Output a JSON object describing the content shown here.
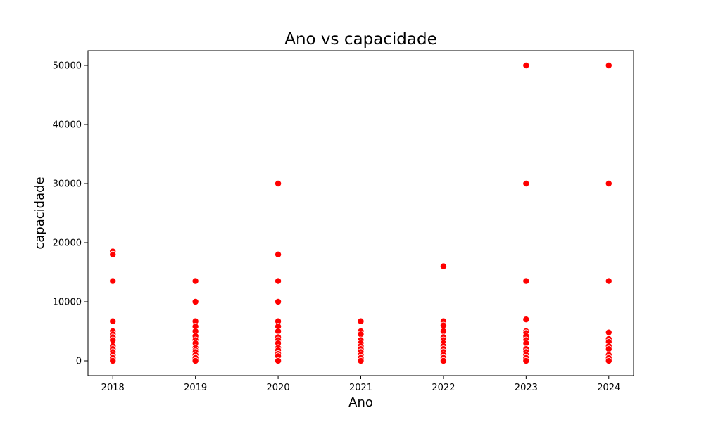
{
  "chart_data": {
    "type": "scatter",
    "title": "Ano vs capacidade",
    "xlabel": "Ano",
    "ylabel": "capacidade",
    "xlim": [
      2017.7,
      2024.3
    ],
    "ylim": [
      -2500,
      52500
    ],
    "x_ticks": [
      2018,
      2019,
      2020,
      2021,
      2022,
      2023,
      2024
    ],
    "y_ticks": [
      0,
      10000,
      20000,
      30000,
      40000,
      50000
    ],
    "grid": false,
    "legend": "none",
    "marker_color": "#ff0000",
    "marker_edge_color": "#ffffff",
    "points": [
      {
        "x": 2018,
        "y": 18500
      },
      {
        "x": 2018,
        "y": 18000
      },
      {
        "x": 2018,
        "y": 13500
      },
      {
        "x": 2018,
        "y": 6700
      },
      {
        "x": 2018,
        "y": 5000
      },
      {
        "x": 2018,
        "y": 4500
      },
      {
        "x": 2018,
        "y": 4000
      },
      {
        "x": 2018,
        "y": 3500
      },
      {
        "x": 2018,
        "y": 2500
      },
      {
        "x": 2018,
        "y": 2000
      },
      {
        "x": 2018,
        "y": 1500
      },
      {
        "x": 2018,
        "y": 1000
      },
      {
        "x": 2018,
        "y": 500
      },
      {
        "x": 2018,
        "y": 0
      },
      {
        "x": 2019,
        "y": 13500
      },
      {
        "x": 2019,
        "y": 10000
      },
      {
        "x": 2019,
        "y": 6700
      },
      {
        "x": 2019,
        "y": 5800
      },
      {
        "x": 2019,
        "y": 5000
      },
      {
        "x": 2019,
        "y": 4200
      },
      {
        "x": 2019,
        "y": 3500
      },
      {
        "x": 2019,
        "y": 3000
      },
      {
        "x": 2019,
        "y": 2200
      },
      {
        "x": 2019,
        "y": 1800
      },
      {
        "x": 2019,
        "y": 1500
      },
      {
        "x": 2019,
        "y": 1000
      },
      {
        "x": 2019,
        "y": 500
      },
      {
        "x": 2019,
        "y": 0
      },
      {
        "x": 2020,
        "y": 30000
      },
      {
        "x": 2020,
        "y": 18000
      },
      {
        "x": 2020,
        "y": 13500
      },
      {
        "x": 2020,
        "y": 10000
      },
      {
        "x": 2020,
        "y": 6700
      },
      {
        "x": 2020,
        "y": 5800
      },
      {
        "x": 2020,
        "y": 5000
      },
      {
        "x": 2020,
        "y": 4000
      },
      {
        "x": 2020,
        "y": 3500
      },
      {
        "x": 2020,
        "y": 3000
      },
      {
        "x": 2020,
        "y": 2200
      },
      {
        "x": 2020,
        "y": 1800
      },
      {
        "x": 2020,
        "y": 1200
      },
      {
        "x": 2020,
        "y": 800
      },
      {
        "x": 2020,
        "y": 0
      },
      {
        "x": 2021,
        "y": 6700
      },
      {
        "x": 2021,
        "y": 5000
      },
      {
        "x": 2021,
        "y": 4500
      },
      {
        "x": 2021,
        "y": 3500
      },
      {
        "x": 2021,
        "y": 3000
      },
      {
        "x": 2021,
        "y": 2500
      },
      {
        "x": 2021,
        "y": 2000
      },
      {
        "x": 2021,
        "y": 1500
      },
      {
        "x": 2021,
        "y": 1000
      },
      {
        "x": 2021,
        "y": 500
      },
      {
        "x": 2021,
        "y": 0
      },
      {
        "x": 2022,
        "y": 16000
      },
      {
        "x": 2022,
        "y": 6700
      },
      {
        "x": 2022,
        "y": 6000
      },
      {
        "x": 2022,
        "y": 5000
      },
      {
        "x": 2022,
        "y": 4000
      },
      {
        "x": 2022,
        "y": 3500
      },
      {
        "x": 2022,
        "y": 3000
      },
      {
        "x": 2022,
        "y": 2500
      },
      {
        "x": 2022,
        "y": 2000
      },
      {
        "x": 2022,
        "y": 1500
      },
      {
        "x": 2022,
        "y": 1000
      },
      {
        "x": 2022,
        "y": 500
      },
      {
        "x": 2022,
        "y": 0
      },
      {
        "x": 2023,
        "y": 50000
      },
      {
        "x": 2023,
        "y": 30000
      },
      {
        "x": 2023,
        "y": 13500
      },
      {
        "x": 2023,
        "y": 7000
      },
      {
        "x": 2023,
        "y": 5000
      },
      {
        "x": 2023,
        "y": 4700
      },
      {
        "x": 2023,
        "y": 4200
      },
      {
        "x": 2023,
        "y": 3500
      },
      {
        "x": 2023,
        "y": 3000
      },
      {
        "x": 2023,
        "y": 2000
      },
      {
        "x": 2023,
        "y": 1500
      },
      {
        "x": 2023,
        "y": 1000
      },
      {
        "x": 2023,
        "y": 500
      },
      {
        "x": 2023,
        "y": 0
      },
      {
        "x": 2024,
        "y": 50000
      },
      {
        "x": 2024,
        "y": 30000
      },
      {
        "x": 2024,
        "y": 13500
      },
      {
        "x": 2024,
        "y": 4800
      },
      {
        "x": 2024,
        "y": 3700
      },
      {
        "x": 2024,
        "y": 3200
      },
      {
        "x": 2024,
        "y": 2500
      },
      {
        "x": 2024,
        "y": 2000
      },
      {
        "x": 2024,
        "y": 1000
      },
      {
        "x": 2024,
        "y": 500
      },
      {
        "x": 2024,
        "y": 0
      }
    ]
  }
}
